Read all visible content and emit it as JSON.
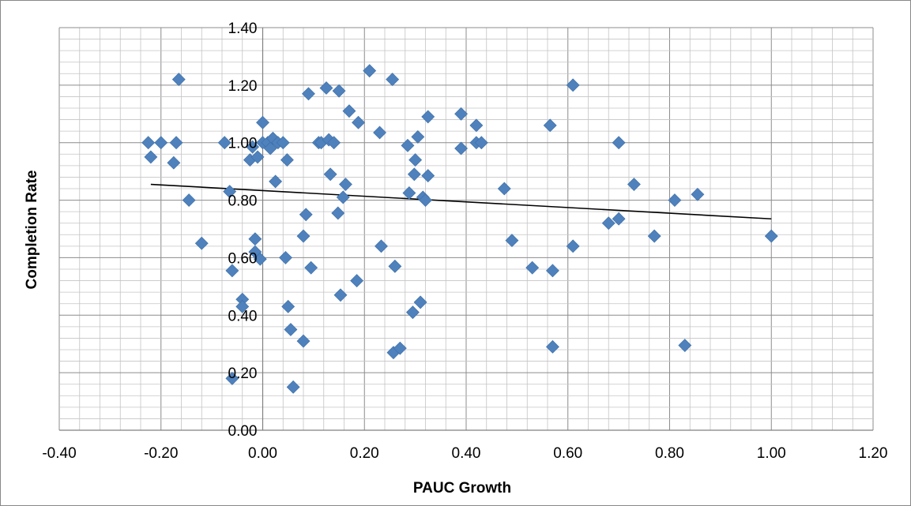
{
  "chart_data": {
    "type": "scatter",
    "title": "",
    "xlabel": "PAUC Growth",
    "ylabel": "Completion Rate",
    "xlim": [
      -0.4,
      1.2
    ],
    "ylim": [
      0.0,
      1.4
    ],
    "x_ticks": [
      "-0.40",
      "-0.20",
      "0.00",
      "0.20",
      "0.40",
      "0.60",
      "0.80",
      "1.00",
      "1.20"
    ],
    "y_ticks": [
      "0.00",
      "0.20",
      "0.40",
      "0.60",
      "0.80",
      "1.00",
      "1.20",
      "1.40"
    ],
    "grid": "major and minor",
    "legend": "none",
    "marker": "diamond",
    "marker_color": "#4f81bd",
    "trendline": {
      "type": "linear",
      "x": [
        -0.22,
        1.0
      ],
      "y": [
        0.855,
        0.735
      ],
      "color": "#000000"
    },
    "points": [
      {
        "x": -0.225,
        "y": 1.0
      },
      {
        "x": -0.22,
        "y": 0.95
      },
      {
        "x": -0.2,
        "y": 1.0
      },
      {
        "x": -0.17,
        "y": 1.0
      },
      {
        "x": -0.175,
        "y": 0.93
      },
      {
        "x": -0.165,
        "y": 1.22
      },
      {
        "x": -0.145,
        "y": 0.8
      },
      {
        "x": -0.12,
        "y": 0.65
      },
      {
        "x": -0.075,
        "y": 1.0
      },
      {
        "x": -0.065,
        "y": 0.83
      },
      {
        "x": -0.06,
        "y": 0.555
      },
      {
        "x": -0.06,
        "y": 0.18
      },
      {
        "x": -0.04,
        "y": 0.455
      },
      {
        "x": -0.04,
        "y": 0.43
      },
      {
        "x": -0.025,
        "y": 0.94
      },
      {
        "x": -0.02,
        "y": 0.985
      },
      {
        "x": -0.015,
        "y": 0.665
      },
      {
        "x": -0.015,
        "y": 0.62
      },
      {
        "x": -0.01,
        "y": 0.95
      },
      {
        "x": -0.005,
        "y": 0.595
      },
      {
        "x": 0.0,
        "y": 1.07
      },
      {
        "x": 0.0,
        "y": 1.0
      },
      {
        "x": 0.01,
        "y": 1.0
      },
      {
        "x": 0.015,
        "y": 0.98
      },
      {
        "x": 0.02,
        "y": 1.015
      },
      {
        "x": 0.025,
        "y": 0.865
      },
      {
        "x": 0.03,
        "y": 1.0
      },
      {
        "x": 0.04,
        "y": 1.0
      },
      {
        "x": 0.045,
        "y": 0.6
      },
      {
        "x": 0.048,
        "y": 0.94
      },
      {
        "x": 0.05,
        "y": 0.43
      },
      {
        "x": 0.055,
        "y": 0.35
      },
      {
        "x": 0.06,
        "y": 0.15
      },
      {
        "x": 0.08,
        "y": 0.675
      },
      {
        "x": 0.08,
        "y": 0.31
      },
      {
        "x": 0.085,
        "y": 0.75
      },
      {
        "x": 0.09,
        "y": 1.17
      },
      {
        "x": 0.095,
        "y": 0.565
      },
      {
        "x": 0.11,
        "y": 1.0
      },
      {
        "x": 0.115,
        "y": 1.0
      },
      {
        "x": 0.125,
        "y": 1.19
      },
      {
        "x": 0.13,
        "y": 1.01
      },
      {
        "x": 0.133,
        "y": 0.89
      },
      {
        "x": 0.14,
        "y": 1.0
      },
      {
        "x": 0.148,
        "y": 0.755
      },
      {
        "x": 0.15,
        "y": 1.18
      },
      {
        "x": 0.153,
        "y": 0.47
      },
      {
        "x": 0.158,
        "y": 0.81
      },
      {
        "x": 0.163,
        "y": 0.855
      },
      {
        "x": 0.17,
        "y": 1.11
      },
      {
        "x": 0.185,
        "y": 0.52
      },
      {
        "x": 0.188,
        "y": 1.07
      },
      {
        "x": 0.21,
        "y": 1.25
      },
      {
        "x": 0.23,
        "y": 1.035
      },
      {
        "x": 0.233,
        "y": 0.64
      },
      {
        "x": 0.255,
        "y": 1.22
      },
      {
        "x": 0.257,
        "y": 0.27
      },
      {
        "x": 0.26,
        "y": 0.57
      },
      {
        "x": 0.27,
        "y": 0.285
      },
      {
        "x": 0.285,
        "y": 0.99
      },
      {
        "x": 0.288,
        "y": 0.825
      },
      {
        "x": 0.295,
        "y": 0.41
      },
      {
        "x": 0.298,
        "y": 0.89
      },
      {
        "x": 0.3,
        "y": 0.94
      },
      {
        "x": 0.305,
        "y": 1.02
      },
      {
        "x": 0.31,
        "y": 0.445
      },
      {
        "x": 0.315,
        "y": 0.81
      },
      {
        "x": 0.32,
        "y": 0.8
      },
      {
        "x": 0.325,
        "y": 1.09
      },
      {
        "x": 0.325,
        "y": 0.885
      },
      {
        "x": 0.39,
        "y": 1.1
      },
      {
        "x": 0.39,
        "y": 0.98
      },
      {
        "x": 0.42,
        "y": 1.06
      },
      {
        "x": 0.42,
        "y": 1.0
      },
      {
        "x": 0.43,
        "y": 1.0
      },
      {
        "x": 0.475,
        "y": 0.84
      },
      {
        "x": 0.49,
        "y": 0.66
      },
      {
        "x": 0.53,
        "y": 0.565
      },
      {
        "x": 0.565,
        "y": 1.06
      },
      {
        "x": 0.57,
        "y": 0.555
      },
      {
        "x": 0.57,
        "y": 0.29
      },
      {
        "x": 0.61,
        "y": 1.2
      },
      {
        "x": 0.61,
        "y": 0.64
      },
      {
        "x": 0.68,
        "y": 0.72
      },
      {
        "x": 0.7,
        "y": 0.735
      },
      {
        "x": 0.7,
        "y": 1.0
      },
      {
        "x": 0.73,
        "y": 0.855
      },
      {
        "x": 0.77,
        "y": 0.675
      },
      {
        "x": 0.81,
        "y": 0.8
      },
      {
        "x": 0.83,
        "y": 0.295
      },
      {
        "x": 0.855,
        "y": 0.82
      },
      {
        "x": 1.0,
        "y": 0.675
      }
    ]
  }
}
